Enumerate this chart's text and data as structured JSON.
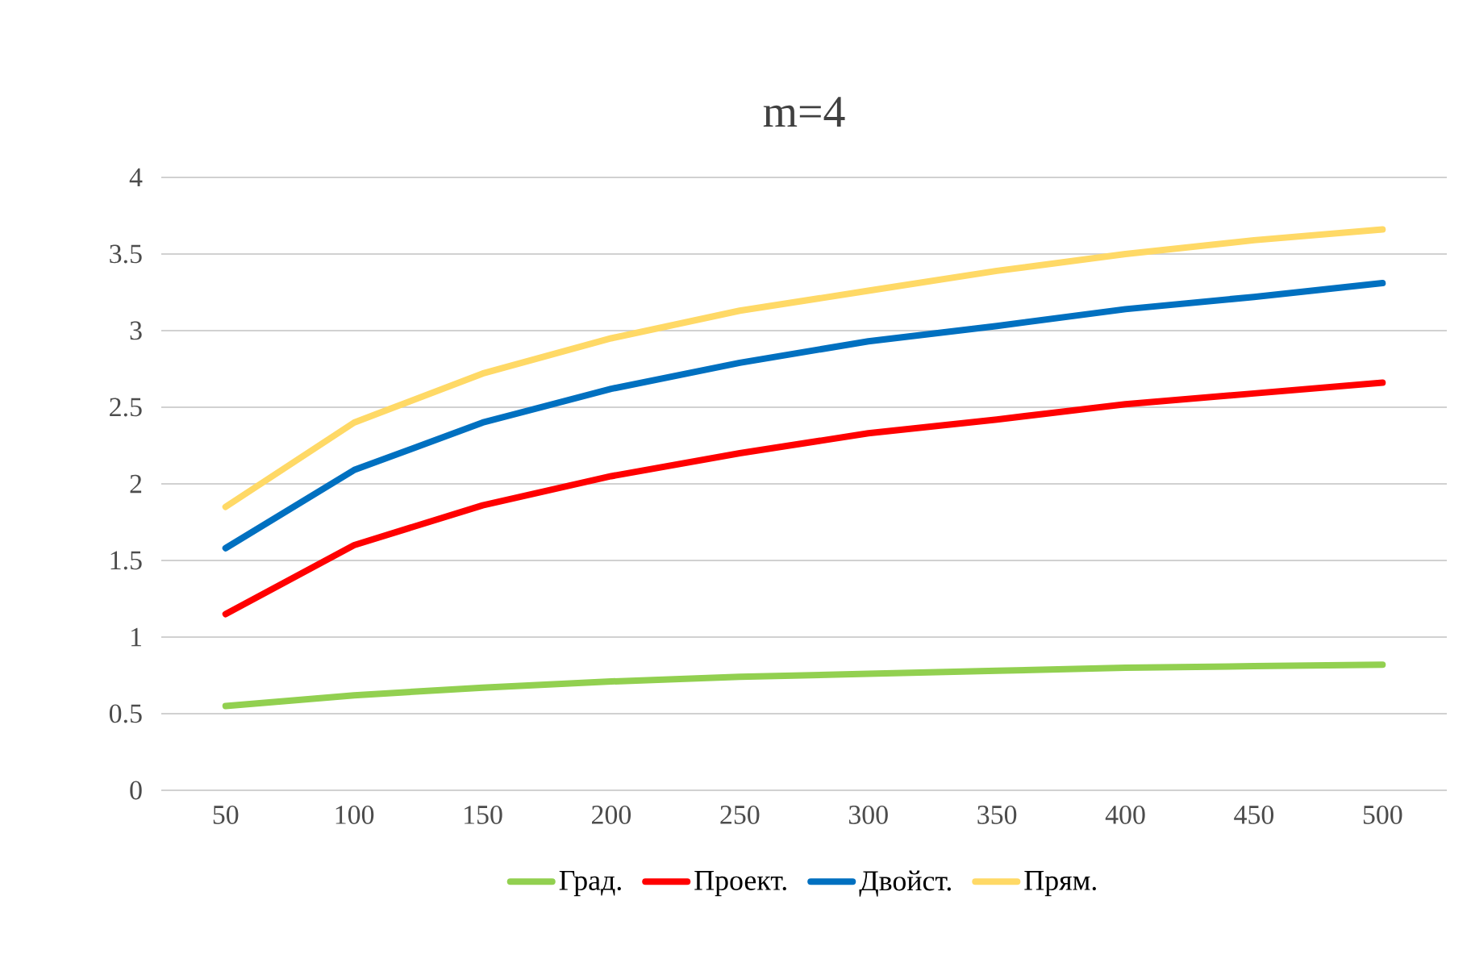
{
  "chart_data": {
    "type": "line",
    "title": "m=4",
    "categories": [
      "50",
      "100",
      "150",
      "200",
      "250",
      "300",
      "350",
      "400",
      "450",
      "500"
    ],
    "series": [
      {
        "name": "Град.",
        "color": "#92d050",
        "values": [
          0.55,
          0.62,
          0.67,
          0.71,
          0.74,
          0.76,
          0.78,
          0.8,
          0.81,
          0.82
        ]
      },
      {
        "name": "Проект.",
        "color": "#ff0000",
        "values": [
          1.15,
          1.6,
          1.86,
          2.05,
          2.2,
          2.33,
          2.42,
          2.52,
          2.59,
          2.66
        ]
      },
      {
        "name": "Двойст.",
        "color": "#0070c0",
        "values": [
          1.58,
          2.09,
          2.4,
          2.62,
          2.79,
          2.93,
          3.03,
          3.14,
          3.22,
          3.31
        ]
      },
      {
        "name": "Прям.",
        "color": "#ffd966",
        "values": [
          1.85,
          2.4,
          2.72,
          2.95,
          3.13,
          3.26,
          3.39,
          3.5,
          3.59,
          3.66
        ]
      }
    ],
    "ylim": [
      0,
      4
    ],
    "yticks": [
      0,
      0.5,
      1,
      1.5,
      2,
      2.5,
      3,
      3.5,
      4
    ],
    "grid": "y",
    "legend": "bottom",
    "marker": "none",
    "line_style": "solid"
  }
}
